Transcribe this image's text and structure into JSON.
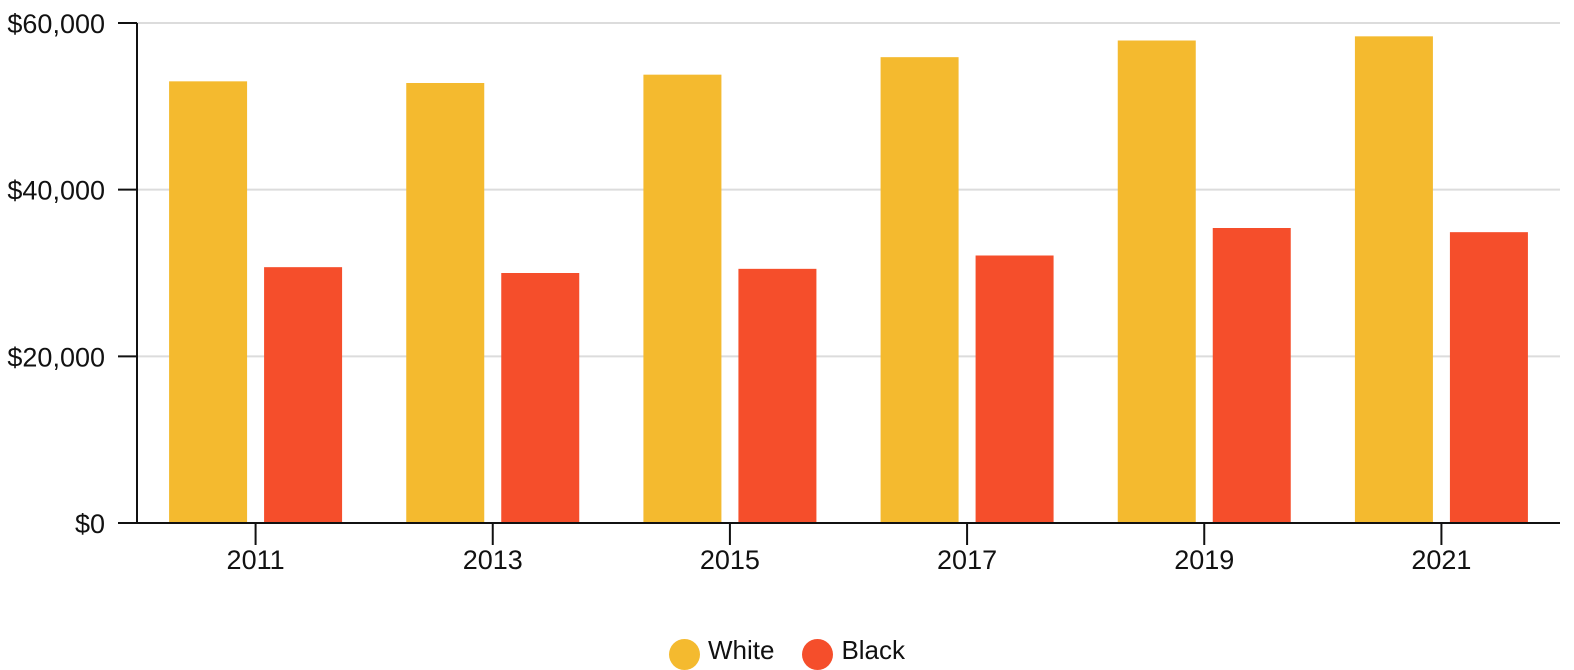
{
  "chart_data": {
    "type": "bar",
    "categories": [
      "2011",
      "2013",
      "2015",
      "2017",
      "2019",
      "2021"
    ],
    "series": [
      {
        "name": "White",
        "color": "#F4BA2F",
        "values": [
          53000,
          52800,
          53800,
          55900,
          57900,
          58400
        ]
      },
      {
        "name": "Black",
        "color": "#F54E2B",
        "values": [
          30700,
          30000,
          30500,
          32100,
          35400,
          34900
        ]
      }
    ],
    "ylim": [
      0,
      60000
    ],
    "yticks": [
      {
        "value": 0,
        "label": "$0"
      },
      {
        "value": 20000,
        "label": "$20,000"
      },
      {
        "value": 40000,
        "label": "$40,000"
      },
      {
        "value": 60000,
        "label": "$60,000"
      }
    ],
    "grid": true,
    "legend_position": "bottom-center",
    "title": "",
    "xlabel": "",
    "ylabel": ""
  }
}
